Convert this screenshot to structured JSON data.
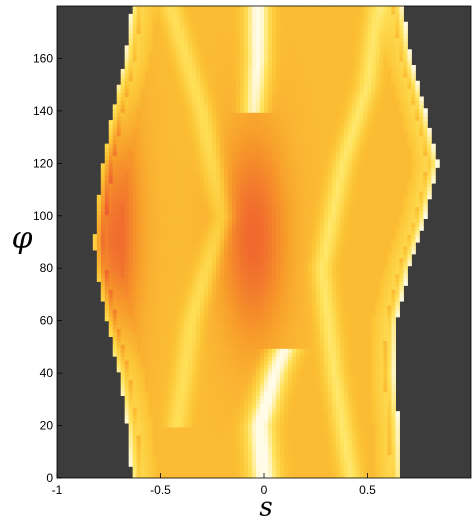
{
  "chart_data": {
    "type": "heatmap",
    "title": "",
    "xlabel": "s",
    "ylabel": "φ",
    "xlim": [
      -1,
      1
    ],
    "ylim": [
      0,
      180
    ],
    "xticks": [
      {
        "value": -1,
        "label": "-1"
      },
      {
        "value": -0.5,
        "label": "-0.5"
      },
      {
        "value": 0,
        "label": "0"
      },
      {
        "value": 0.5,
        "label": "0.5"
      }
    ],
    "yticks": [
      {
        "value": 0,
        "label": "0"
      },
      {
        "value": 20,
        "label": "20"
      },
      {
        "value": 40,
        "label": "40"
      },
      {
        "value": 60,
        "label": "60"
      },
      {
        "value": 80,
        "label": "80"
      },
      {
        "value": 100,
        "label": "100"
      },
      {
        "value": 120,
        "label": "120"
      },
      {
        "value": 140,
        "label": "140"
      },
      {
        "value": 160,
        "label": "160"
      }
    ],
    "background_color": "#3c3c3c",
    "colormap": [
      "#ec3636",
      "#f06a2e",
      "#f79a2a",
      "#fcc637",
      "#ffe35c",
      "#fffbe6"
    ],
    "support_boundary": {
      "phi": [
        0,
        20,
        40,
        60,
        80,
        90,
        100,
        120,
        140,
        160,
        180
      ],
      "s_left": [
        -0.64,
        -0.66,
        -0.7,
        -0.76,
        -0.81,
        -0.82,
        -0.81,
        -0.78,
        -0.73,
        -0.67,
        -0.64
      ],
      "s_right": [
        0.66,
        0.65,
        0.63,
        0.64,
        0.7,
        0.74,
        0.78,
        0.84,
        0.78,
        0.71,
        0.67
      ]
    },
    "bright_streaks": [
      {
        "phi": [
          0,
          20,
          40,
          50
        ],
        "s": [
          0.0,
          -0.02,
          0.05,
          0.1
        ],
        "width": 0.07,
        "level": 1.0
      },
      {
        "phi": [
          140,
          160,
          180
        ],
        "s": [
          -0.05,
          -0.03,
          -0.03
        ],
        "width": 0.06,
        "level": 0.95
      },
      {
        "phi": [
          0,
          40,
          80,
          120,
          150,
          180
        ],
        "s": [
          0.42,
          0.34,
          0.28,
          0.38,
          0.5,
          0.55
        ],
        "width": 0.05,
        "level": 0.55
      },
      {
        "phi": [
          20,
          60,
          100,
          140,
          180
        ],
        "s": [
          -0.42,
          -0.35,
          -0.2,
          -0.3,
          -0.45
        ],
        "width": 0.05,
        "level": 0.45
      }
    ],
    "hot_regions": [
      {
        "s": -0.75,
        "phi": 95,
        "radius_s": 0.14,
        "radius_phi": 48,
        "level": 0.95
      },
      {
        "s": -0.05,
        "phi": 92,
        "radius_s": 0.16,
        "radius_phi": 40,
        "level": 0.8
      }
    ]
  }
}
